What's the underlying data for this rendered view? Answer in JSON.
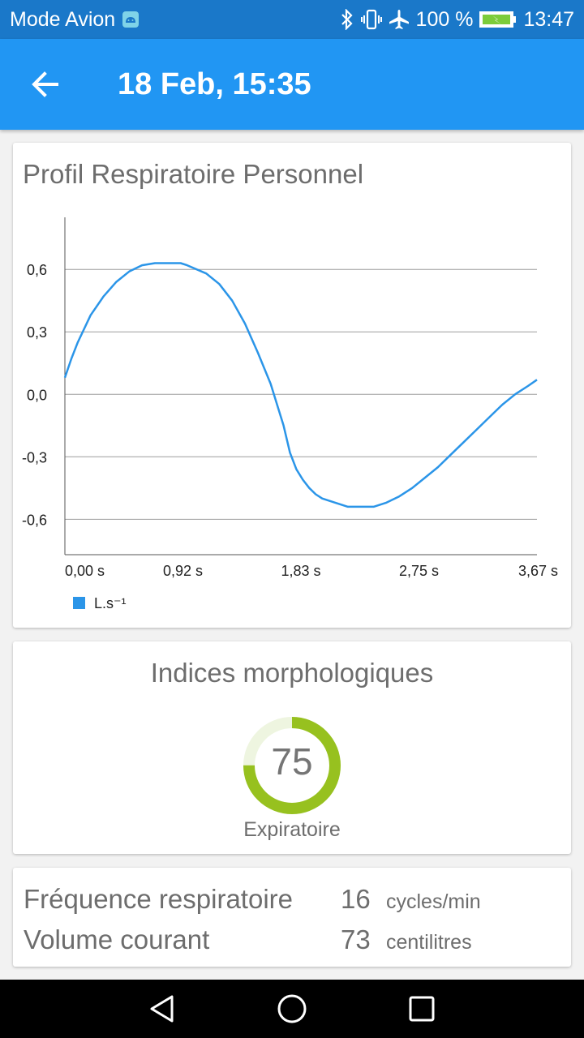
{
  "status_bar": {
    "mode": "Mode Avion",
    "battery": "100 %",
    "time": "13:47",
    "icons": [
      "android-icon",
      "bluetooth-icon",
      "vibrate-icon",
      "airplane-icon",
      "battery-charging-icon"
    ]
  },
  "app_bar": {
    "title": "18 Feb, 15:35",
    "back_icon": "arrow-back-icon"
  },
  "chart_card": {
    "title": "Profil Respiratoire Personnel"
  },
  "chart_data": {
    "type": "line",
    "title": "Profil Respiratoire Personnel",
    "xlabel": "",
    "ylabel": "",
    "x_ticks": [
      "0,00 s",
      "0,92 s",
      "1,83 s",
      "2,75 s",
      "3,67 s"
    ],
    "y_ticks": [
      "0,6",
      "0,3",
      "0,0",
      "-0,3",
      "-0,6"
    ],
    "xlim": [
      0,
      3.67
    ],
    "ylim": [
      -0.77,
      0.85
    ],
    "grid": true,
    "legend_position": "bottom-left",
    "series": [
      {
        "name": "L.s⁻¹",
        "color": "#2b95e8",
        "x": [
          0.0,
          0.05,
          0.1,
          0.2,
          0.3,
          0.4,
          0.5,
          0.6,
          0.7,
          0.8,
          0.9,
          0.95,
          1.1,
          1.2,
          1.3,
          1.4,
          1.5,
          1.6,
          1.7,
          1.75,
          1.8,
          1.85,
          1.9,
          1.95,
          2.0,
          2.1,
          2.2,
          2.3,
          2.4,
          2.5,
          2.6,
          2.7,
          2.8,
          2.9,
          3.0,
          3.1,
          3.2,
          3.3,
          3.4,
          3.5,
          3.6,
          3.67
        ],
        "y": [
          0.08,
          0.17,
          0.25,
          0.38,
          0.47,
          0.54,
          0.59,
          0.62,
          0.63,
          0.63,
          0.63,
          0.62,
          0.58,
          0.53,
          0.45,
          0.34,
          0.2,
          0.05,
          -0.15,
          -0.28,
          -0.36,
          -0.41,
          -0.45,
          -0.48,
          -0.5,
          -0.52,
          -0.54,
          -0.54,
          -0.54,
          -0.52,
          -0.49,
          -0.45,
          -0.4,
          -0.35,
          -0.29,
          -0.23,
          -0.17,
          -0.11,
          -0.05,
          0.0,
          0.04,
          0.07
        ]
      }
    ]
  },
  "morph_card": {
    "title": "Indices morphologiques",
    "gauge_value": "75",
    "gauge_fraction": 0.75,
    "gauge_label": "Expiratoire",
    "gauge_color": "#97c11f",
    "gauge_track_color": "#eef5e0"
  },
  "stats": [
    {
      "label": "Fréquence respiratoire",
      "value": "16",
      "unit": "cycles/min"
    },
    {
      "label": "Volume courant",
      "value": "73",
      "unit": "centilitres"
    }
  ],
  "nav_bar": {
    "icons": [
      "nav-back-icon",
      "nav-home-icon",
      "nav-recents-icon"
    ]
  }
}
